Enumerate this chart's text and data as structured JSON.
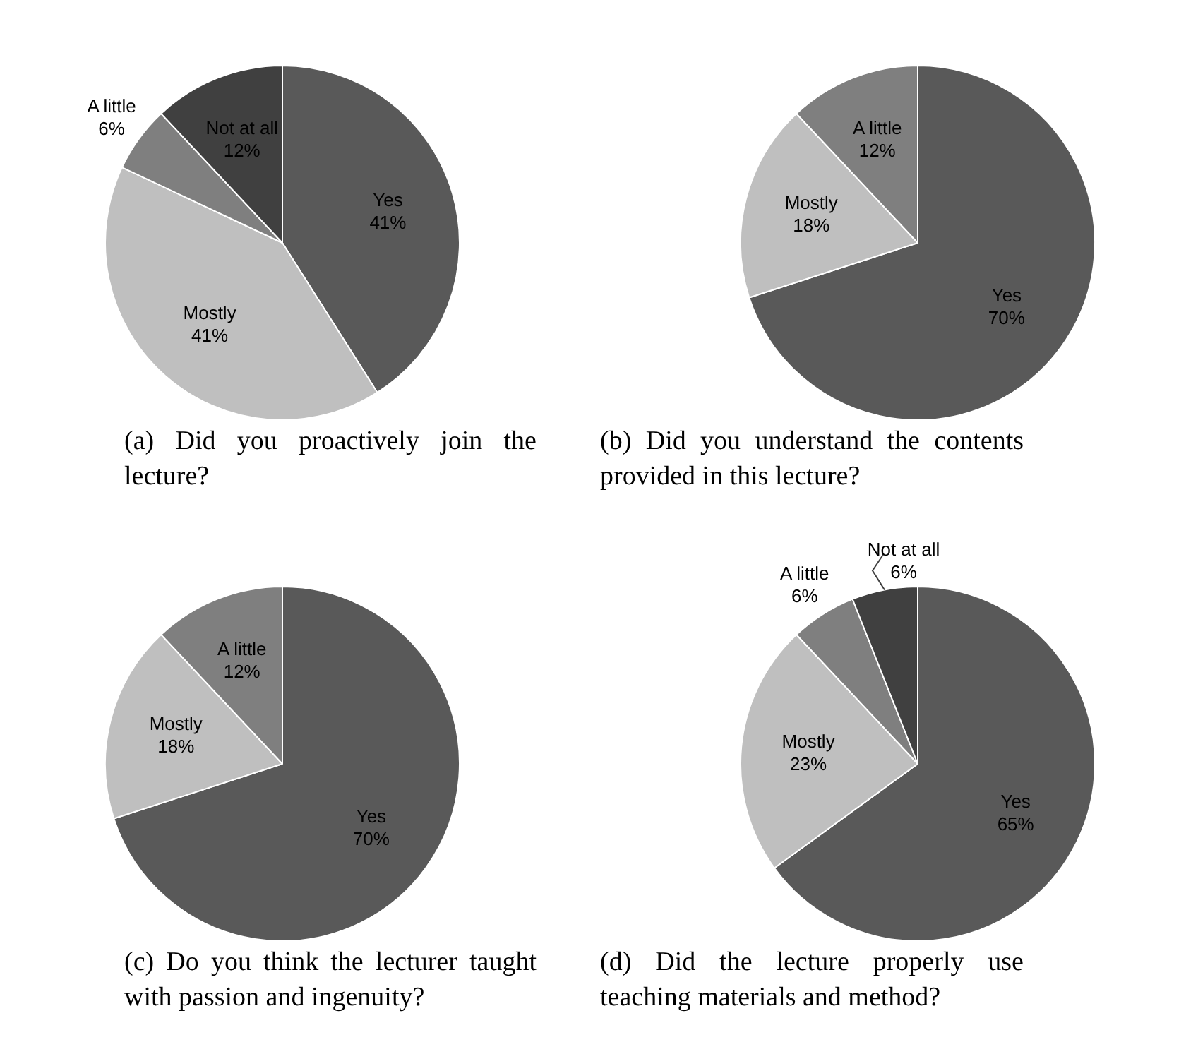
{
  "chart_data": [
    {
      "type": "pie",
      "title": "(a) Did you proactively join the lecture?",
      "categories": [
        "Yes",
        "Mostly",
        "A little",
        "Not at all"
      ],
      "values": [
        41,
        41,
        6,
        12
      ],
      "value_labels": [
        "41%",
        "41%",
        "6%",
        "12%"
      ],
      "colors": [
        "#595959",
        "#bfbfbf",
        "#7f7f7f",
        "#404040"
      ],
      "legend": false
    },
    {
      "type": "pie",
      "title": "(b) Did you understand the contents provided in this lecture?",
      "categories": [
        "Yes",
        "Mostly",
        "A little"
      ],
      "values": [
        70,
        18,
        12
      ],
      "value_labels": [
        "70%",
        "18%",
        "12%"
      ],
      "colors": [
        "#595959",
        "#bfbfbf",
        "#7f7f7f"
      ],
      "legend": false
    },
    {
      "type": "pie",
      "title": "(c) Do you think the lecturer taught with passion and ingenuity?",
      "categories": [
        "Yes",
        "Mostly",
        "A little"
      ],
      "values": [
        70,
        18,
        12
      ],
      "value_labels": [
        "70%",
        "18%",
        "12%"
      ],
      "colors": [
        "#595959",
        "#bfbfbf",
        "#7f7f7f"
      ],
      "legend": false
    },
    {
      "type": "pie",
      "title": "(d) Did the lecture properly use teaching materials and method?",
      "categories": [
        "Yes",
        "Mostly",
        "A little",
        "Not at all"
      ],
      "values": [
        65,
        23,
        6,
        6
      ],
      "value_labels": [
        "65%",
        "23%",
        "6%",
        "6%"
      ],
      "colors": [
        "#595959",
        "#bfbfbf",
        "#7f7f7f",
        "#404040"
      ],
      "legend": false
    }
  ]
}
